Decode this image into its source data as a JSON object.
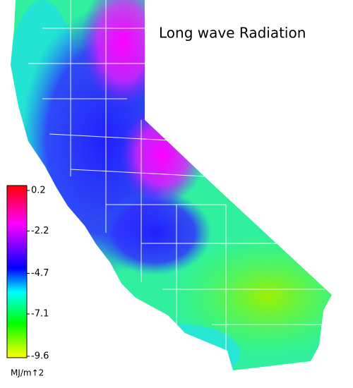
{
  "title": "Long wave Radiation",
  "colorbar": {
    "ticks": [
      0.2,
      -2.2,
      -4.7,
      -7.1,
      -9.6
    ],
    "unit": "MJ/m↑2"
  }
}
